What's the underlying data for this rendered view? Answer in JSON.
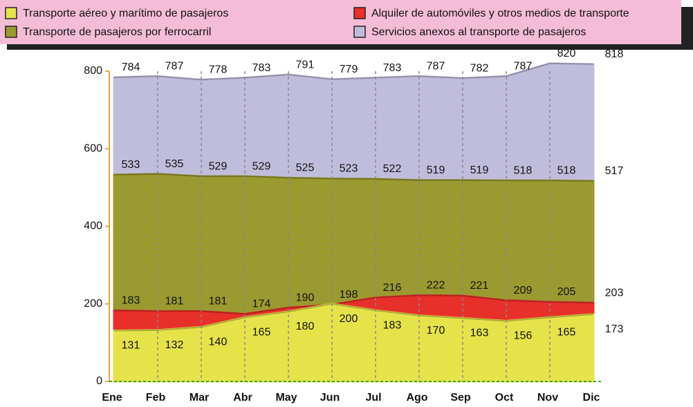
{
  "chart_data": {
    "type": "area",
    "categories": [
      "Ene",
      "Feb",
      "Mar",
      "Abr",
      "May",
      "Jun",
      "Jul",
      "Ago",
      "Sep",
      "Oct",
      "Nov",
      "Dic"
    ],
    "series": [
      {
        "name": "Transporte aéreo y marítimo de pasajeros",
        "color": "#e6e34a",
        "values": [
          131,
          132,
          140,
          165,
          180,
          200,
          183,
          170,
          163,
          156,
          165,
          173
        ]
      },
      {
        "name": "Alquiler de automóviles y otros medios de transporte",
        "color": "#e8302a",
        "values": [
          183,
          181,
          181,
          174,
          190,
          198,
          216,
          222,
          221,
          209,
          205,
          203
        ]
      },
      {
        "name": "Transporte de pasajeros por ferrocarril",
        "color": "#9a9a30",
        "values": [
          533,
          535,
          529,
          529,
          525,
          523,
          522,
          519,
          519,
          518,
          518,
          517
        ]
      },
      {
        "name": "Servicios anexos al transporte de pasajeros",
        "color": "#c0bddc",
        "values": [
          784,
          787,
          778,
          783,
          791,
          779,
          783,
          787,
          782,
          787,
          820,
          818
        ]
      }
    ],
    "ylim": [
      0,
      800
    ],
    "yticks": [
      0,
      200,
      400,
      600,
      800
    ]
  }
}
